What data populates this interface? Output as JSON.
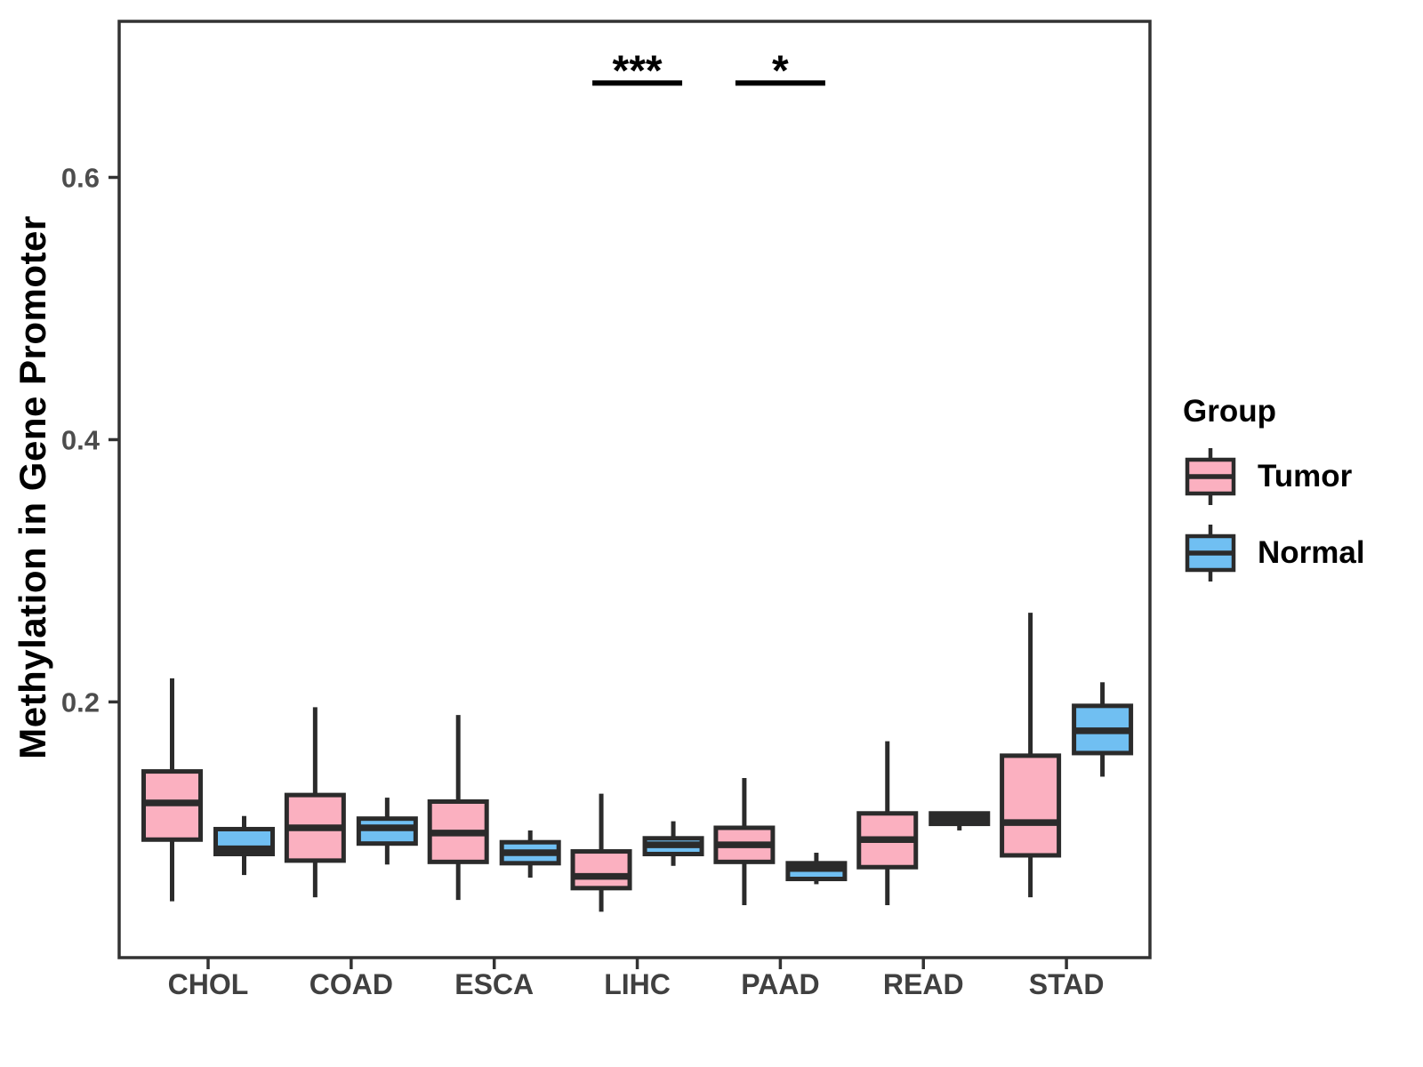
{
  "figure": {
    "background": "#ffffff"
  },
  "chart_data": {
    "type": "boxplot",
    "title": "",
    "xlabel": "",
    "ylabel": "Methylation in Gene Promoter",
    "categories": [
      "CHOL",
      "COAD",
      "ESCA",
      "LIHC",
      "PAAD",
      "READ",
      "STAD"
    ],
    "yticks": [
      0.2,
      0.4,
      0.6
    ],
    "ytick_labels": [
      "0.2",
      "0.4",
      "0.6"
    ],
    "ylim": [
      0.005,
      0.719
    ],
    "grid": false,
    "colors": {
      "tumor_fill": "#FBB0C0",
      "normal_fill": "#70BFF2",
      "box_outline": "#2b2b2b",
      "panel_border": "#333333",
      "tick_label": "#4d4d4d",
      "x_label": "#404040",
      "annotation": "#000000"
    },
    "series": [
      {
        "name": "Tumor",
        "fill": "#FBB0C0",
        "boxes": [
          {
            "category": "CHOL",
            "low": 0.048,
            "q1": 0.095,
            "median": 0.123,
            "q3": 0.147,
            "high": 0.218
          },
          {
            "category": "COAD",
            "low": 0.051,
            "q1": 0.079,
            "median": 0.104,
            "q3": 0.129,
            "high": 0.196
          },
          {
            "category": "ESCA",
            "low": 0.049,
            "q1": 0.078,
            "median": 0.1,
            "q3": 0.124,
            "high": 0.19
          },
          {
            "category": "LIHC",
            "low": 0.04,
            "q1": 0.058,
            "median": 0.067,
            "q3": 0.086,
            "high": 0.13
          },
          {
            "category": "PAAD",
            "low": 0.045,
            "q1": 0.078,
            "median": 0.091,
            "q3": 0.104,
            "high": 0.142
          },
          {
            "category": "READ",
            "low": 0.045,
            "q1": 0.074,
            "median": 0.095,
            "q3": 0.115,
            "high": 0.17
          },
          {
            "category": "STAD",
            "low": 0.051,
            "q1": 0.083,
            "median": 0.108,
            "q3": 0.159,
            "high": 0.268
          }
        ]
      },
      {
        "name": "Normal",
        "fill": "#70BFF2",
        "boxes": [
          {
            "category": "CHOL",
            "low": 0.068,
            "q1": 0.084,
            "median": 0.088,
            "q3": 0.103,
            "high": 0.113
          },
          {
            "category": "COAD",
            "low": 0.076,
            "q1": 0.092,
            "median": 0.104,
            "q3": 0.111,
            "high": 0.127
          },
          {
            "category": "ESCA",
            "low": 0.066,
            "q1": 0.077,
            "median": 0.085,
            "q3": 0.093,
            "high": 0.102
          },
          {
            "category": "LIHC",
            "low": 0.075,
            "q1": 0.084,
            "median": 0.091,
            "q3": 0.096,
            "high": 0.109
          },
          {
            "category": "PAAD",
            "low": 0.061,
            "q1": 0.065,
            "median": 0.073,
            "q3": 0.077,
            "high": 0.085
          },
          {
            "category": "READ",
            "low": 0.102,
            "q1": 0.107,
            "median": 0.111,
            "q3": 0.115,
            "high": 0.116
          },
          {
            "category": "STAD",
            "low": 0.143,
            "q1": 0.161,
            "median": 0.178,
            "q3": 0.197,
            "high": 0.215
          }
        ]
      }
    ],
    "annotations": [
      {
        "category": "LIHC",
        "label": "***",
        "bar_y_value": 0.672
      },
      {
        "category": "PAAD",
        "label": "*",
        "bar_y_value": 0.672
      }
    ],
    "legend": {
      "title": "Group",
      "position": "right",
      "entries": [
        {
          "label": "Tumor",
          "fill": "#FBB0C0"
        },
        {
          "label": "Normal",
          "fill": "#70BFF2"
        }
      ]
    }
  }
}
